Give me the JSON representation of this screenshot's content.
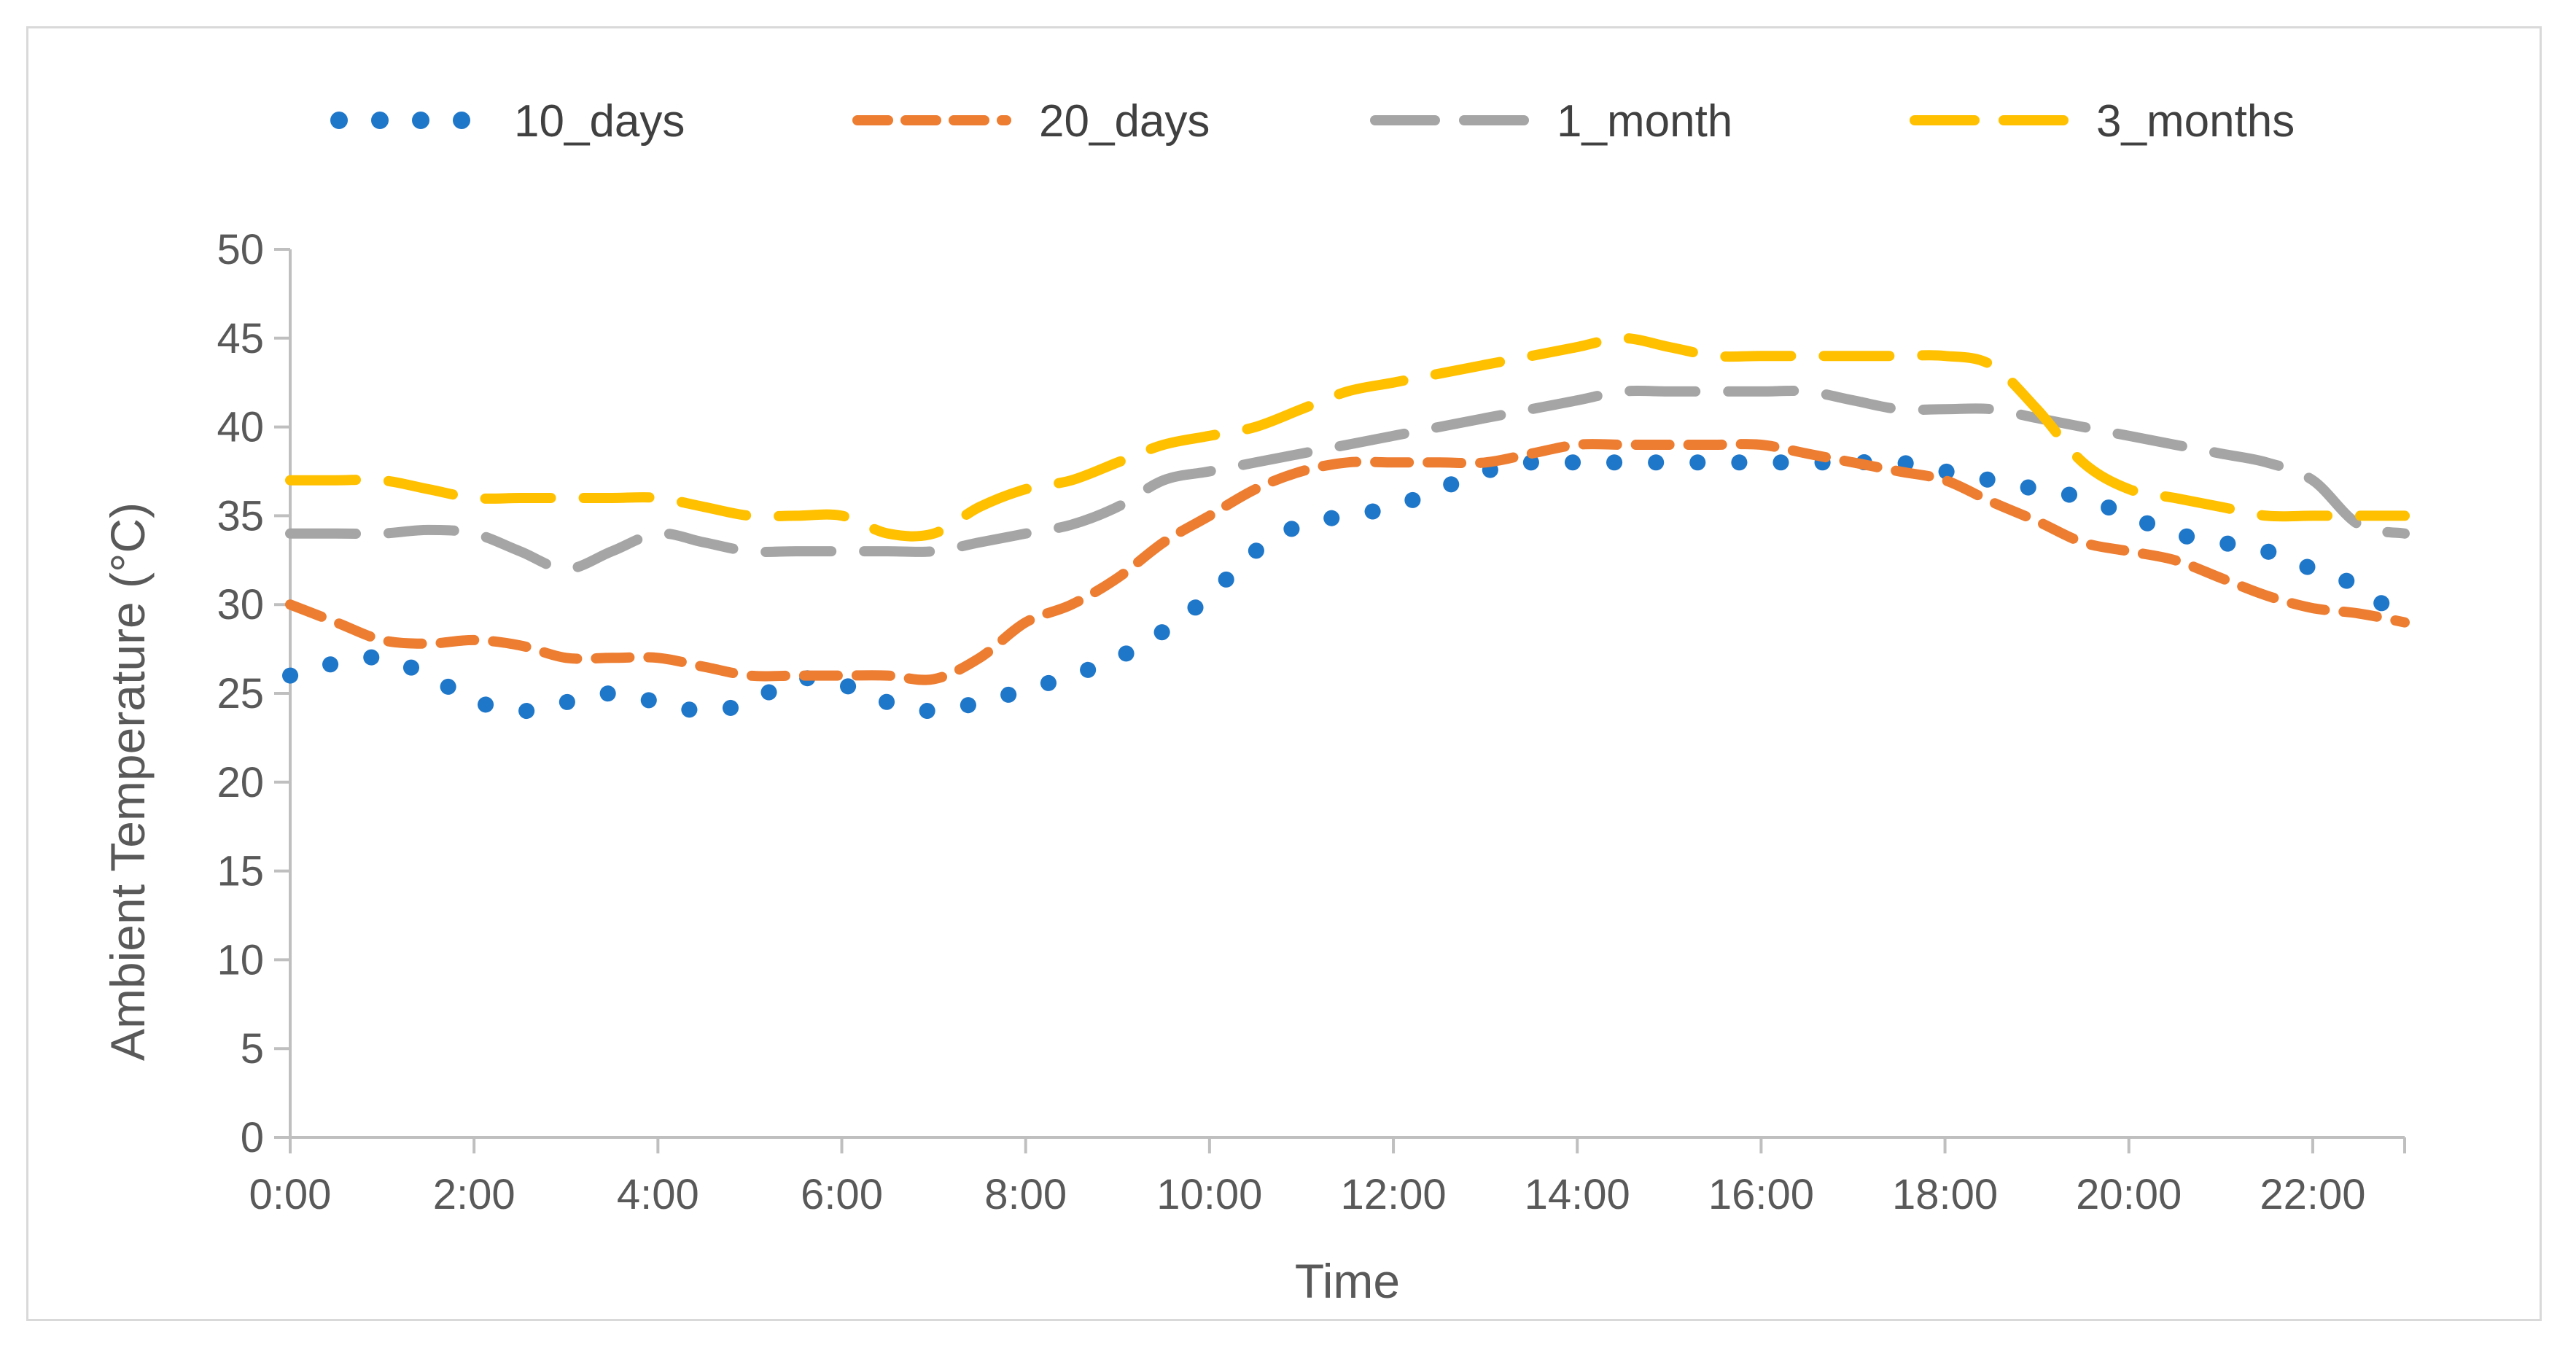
{
  "chart_data": {
    "type": "line",
    "title": "",
    "xlabel": "Time",
    "ylabel": "Ambient Temperature (°C)",
    "ylim": [
      0,
      50
    ],
    "yticks": [
      0,
      5,
      10,
      15,
      20,
      25,
      30,
      35,
      40,
      45,
      50
    ],
    "xlim": [
      0,
      23
    ],
    "xticks": [
      0,
      2,
      4,
      6,
      8,
      10,
      12,
      14,
      16,
      18,
      20,
      22
    ],
    "xtick_labels": [
      "0:00",
      "2:00",
      "4:00",
      "6:00",
      "8:00",
      "10:00",
      "12:00",
      "14:00",
      "16:00",
      "18:00",
      "20:00",
      "22:00"
    ],
    "grid": false,
    "legend_position": "top",
    "x": [
      0,
      0.5,
      1,
      1.5,
      2,
      2.5,
      3,
      3.5,
      4,
      4.5,
      5,
      5.5,
      6,
      6.5,
      7,
      7.5,
      8,
      8.5,
      9,
      9.5,
      10,
      10.5,
      11,
      11.5,
      12,
      12.5,
      13,
      13.5,
      14,
      14.5,
      15,
      15.5,
      16,
      16.5,
      17,
      17.5,
      18,
      18.5,
      19,
      19.5,
      20,
      20.5,
      21,
      21.5,
      22,
      22.5,
      23
    ],
    "series": [
      {
        "name": "10_days",
        "color": "#1f77c9",
        "style": "dotted",
        "values": [
          26,
          26.7,
          27,
          26,
          24.6,
          24,
          24.5,
          25,
          24.5,
          24,
          24.5,
          25.8,
          25.5,
          24.5,
          24,
          24.5,
          25.2,
          26,
          27,
          28.5,
          30.5,
          33,
          34.5,
          35,
          35.5,
          36.5,
          37.5,
          38,
          38,
          38,
          38,
          38,
          38,
          38,
          38,
          38,
          37.5,
          37,
          36.5,
          36,
          35,
          34,
          33.5,
          33,
          32,
          31,
          29
        ]
      },
      {
        "name": "20_days",
        "color": "#ed7d31",
        "style": "dashed",
        "values": [
          30,
          29,
          28,
          27.8,
          28,
          27.7,
          27,
          27,
          27,
          26.5,
          26,
          26,
          26,
          26,
          25.8,
          27,
          29,
          30,
          31.5,
          33.5,
          35,
          36.5,
          37.5,
          38,
          38,
          38,
          38,
          38.5,
          39,
          39,
          39,
          39,
          39,
          38.5,
          38,
          37.5,
          37,
          35.8,
          34.7,
          33.5,
          33,
          32.5,
          31.5,
          30.5,
          29.8,
          29.5,
          29
        ]
      },
      {
        "name": "1_month",
        "color": "#a5a5a5",
        "style": "long-dashed",
        "values": [
          34,
          34,
          34,
          34.2,
          34,
          33,
          32,
          33,
          34,
          33.5,
          33,
          33,
          33,
          33,
          33,
          33.5,
          34,
          34.5,
          35.5,
          37,
          37.5,
          38,
          38.5,
          39,
          39.5,
          40,
          40.5,
          41,
          41.5,
          42,
          42,
          42,
          42,
          42,
          41.5,
          41,
          41,
          41,
          40.5,
          40,
          39.5,
          39,
          38.5,
          38,
          37,
          34.5,
          34
        ]
      },
      {
        "name": "3_months",
        "color": "#ffc000",
        "style": "long-dashed",
        "values": [
          37,
          37,
          37,
          36.5,
          36,
          36,
          36,
          36,
          36,
          35.5,
          35,
          35,
          35,
          34,
          34,
          35.5,
          36.5,
          37,
          38,
          39,
          39.5,
          40,
          41,
          42,
          42.5,
          43,
          43.5,
          44,
          44.5,
          45,
          44.5,
          44,
          44,
          44,
          44,
          44,
          44,
          43.5,
          41,
          38,
          36.5,
          36,
          35.5,
          35,
          35,
          35,
          35
        ]
      }
    ]
  }
}
